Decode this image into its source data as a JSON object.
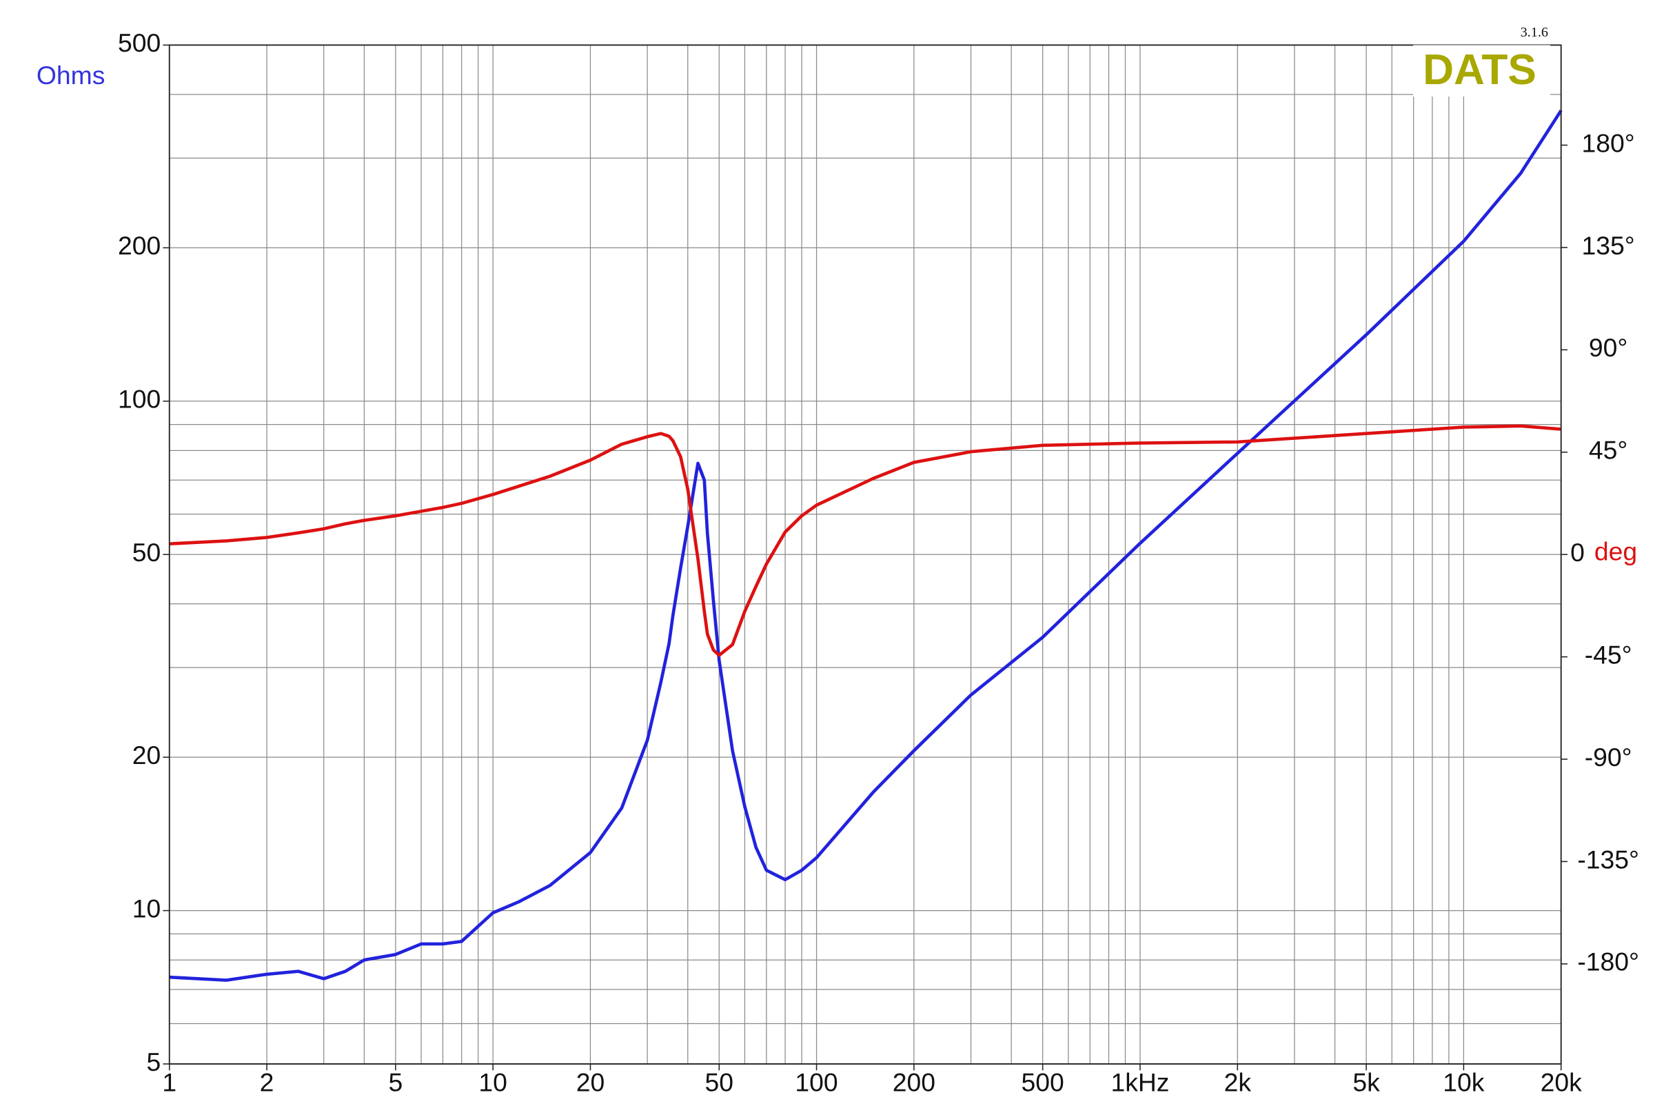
{
  "chart_data": {
    "type": "line",
    "version": "3.1.6",
    "logo": "DATS",
    "y_label": "Ohms",
    "y2_label": "deg",
    "x": [
      1,
      1.5,
      2,
      2.5,
      3,
      3.5,
      4,
      5,
      6,
      7,
      8,
      10,
      12,
      15,
      20,
      25,
      30,
      33,
      35,
      36,
      38,
      40,
      43,
      45,
      46,
      48,
      50,
      55,
      60,
      65,
      70,
      80,
      90,
      100,
      150,
      200,
      300,
      500,
      1000,
      2000,
      5000,
      10000,
      15000,
      20000
    ],
    "series": [
      {
        "name": "Impedance",
        "color": "#2222dd",
        "axis": "y",
        "values": [
          7.4,
          7.3,
          7.5,
          7.6,
          7.35,
          7.6,
          8.0,
          8.2,
          8.6,
          8.6,
          8.7,
          9.9,
          10.4,
          11.2,
          13.0,
          15.9,
          21.6,
          28,
          33.4,
          38,
          47,
          56.8,
          75.5,
          70,
          55,
          40.6,
          31,
          20.6,
          16,
          13.3,
          12.0,
          11.5,
          12.0,
          12.7,
          17.1,
          20.6,
          26.5,
          34.4,
          52.6,
          79,
          135,
          206,
          280,
          372
        ]
      },
      {
        "name": "Phase",
        "color": "#dd1111",
        "axis": "y2",
        "values": [
          4.7,
          6.0,
          7.5,
          9.5,
          11.3,
          13.5,
          15,
          17,
          19,
          20.7,
          22.5,
          26.4,
          30,
          34.4,
          41.5,
          48.5,
          51.8,
          53.2,
          52,
          50,
          43,
          28.7,
          -1.9,
          -25,
          -35,
          -42,
          -44.3,
          -39.6,
          -25,
          -14,
          -4.2,
          9.9,
          17,
          21.7,
          33.5,
          40.5,
          45.2,
          48,
          49,
          49.5,
          53.2,
          56,
          56.5,
          55.1
        ]
      }
    ],
    "x_log": true,
    "y_log": true,
    "xlim": [
      1,
      20000
    ],
    "ylim": [
      5,
      500
    ],
    "y2lim": [
      -224,
      224
    ],
    "xticks": [
      1,
      2,
      5,
      10,
      20,
      50,
      100,
      200,
      500,
      {
        "value": 1000,
        "label": "1kHz"
      },
      {
        "value": 2000,
        "label": "2k"
      },
      {
        "value": 5000,
        "label": "5k"
      },
      {
        "value": 10000,
        "label": "10k"
      },
      {
        "value": 20000,
        "label": "20k"
      }
    ],
    "yticks": [
      5,
      10,
      20,
      50,
      100,
      200,
      500
    ],
    "y2ticks": [
      {
        "value": 180,
        "label": "180°"
      },
      {
        "value": 135,
        "label": "135°"
      },
      {
        "value": 90,
        "label": "90°"
      },
      {
        "value": 45,
        "label": "45°"
      },
      0,
      {
        "value": -45,
        "label": "-45°"
      },
      {
        "value": -90,
        "label": "-90°"
      },
      {
        "value": -135,
        "label": "-135°"
      },
      {
        "value": -180,
        "label": "-180°"
      }
    ],
    "x_grid": [
      1,
      2,
      3,
      4,
      5,
      6,
      7,
      8,
      9,
      10,
      20,
      30,
      40,
      50,
      60,
      70,
      80,
      90,
      100,
      200,
      300,
      400,
      500,
      600,
      700,
      800,
      900,
      1000,
      2000,
      3000,
      4000,
      5000,
      6000,
      7000,
      8000,
      9000,
      10000,
      20000
    ],
    "y_grid": [
      5,
      6,
      7,
      8,
      9,
      10,
      20,
      30,
      40,
      50,
      60,
      70,
      80,
      90,
      100,
      200,
      300,
      400,
      500
    ],
    "grid": true,
    "logo_color": "#a8a800",
    "y_label_color": "#3333dd",
    "y2_label_color": "#dd1111"
  }
}
